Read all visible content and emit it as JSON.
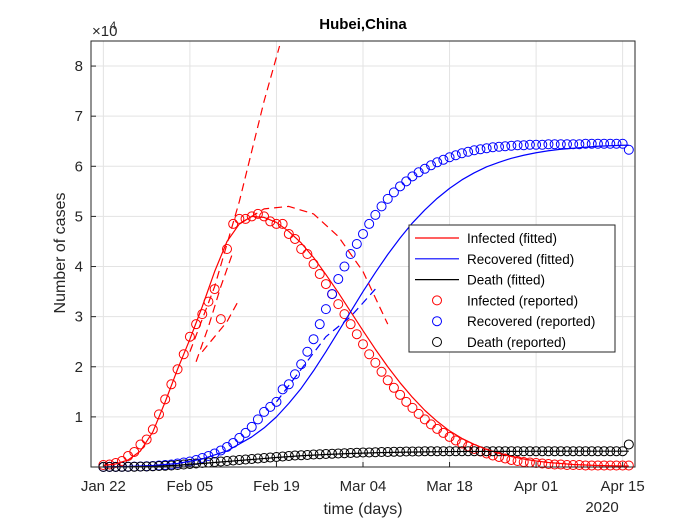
{
  "chart_data": {
    "type": "line",
    "title": "Hubei,China",
    "xlabel": "time (days)",
    "ylabel": "Number of cases",
    "y_exponent_label": "×10",
    "y_exponent_power": "4",
    "x_year_label": "2020",
    "x_unit": "days since Jan 22, 2020",
    "xlim": [
      -2,
      86
    ],
    "ylim": [
      0,
      8.5
    ],
    "y_scale_note": "values in units of 10^4 cases",
    "x_ticks": [
      {
        "value": 0,
        "label": "Jan 22"
      },
      {
        "value": 14,
        "label": "Feb 05"
      },
      {
        "value": 28,
        "label": "Feb 19"
      },
      {
        "value": 42,
        "label": "Mar 04"
      },
      {
        "value": 56,
        "label": "Mar 18"
      },
      {
        "value": 70,
        "label": "Apr 01"
      },
      {
        "value": 84,
        "label": "Apr 15"
      }
    ],
    "y_ticks": [
      1,
      2,
      3,
      4,
      5,
      6,
      7,
      8
    ],
    "grid": true,
    "legend_position": "right",
    "legend": [
      {
        "label": "Infected (fitted)",
        "color": "#ff0000",
        "marker": "line"
      },
      {
        "label": "Recovered (fitted)",
        "color": "#0000ff",
        "marker": "line"
      },
      {
        "label": "Death (fitted)",
        "color": "#000000",
        "marker": "line"
      },
      {
        "label": "Infected (reported)",
        "color": "#ff0000",
        "marker": "circle"
      },
      {
        "label": "Recovered (reported)",
        "color": "#0000ff",
        "marker": "circle"
      },
      {
        "label": "Death  (reported)",
        "color": "#000000",
        "marker": "circle"
      }
    ],
    "series": [
      {
        "name": "Infected (reported)",
        "style": "markers",
        "color": "#ff0000",
        "x": [
          0,
          1,
          2,
          3,
          4,
          5,
          6,
          7,
          8,
          9,
          10,
          11,
          12,
          13,
          14,
          15,
          16,
          17,
          18,
          19,
          20,
          21,
          22,
          23,
          24,
          25,
          26,
          27,
          28,
          29,
          30,
          31,
          32,
          33,
          34,
          35,
          36,
          37,
          38,
          39,
          40,
          41,
          42,
          43,
          44,
          45,
          46,
          47,
          48,
          49,
          50,
          51,
          52,
          53,
          54,
          55,
          56,
          57,
          58,
          59,
          60,
          61,
          62,
          63,
          64,
          65,
          66,
          67,
          68,
          69,
          70,
          71,
          72,
          73,
          74,
          75,
          76,
          77,
          78,
          79,
          80,
          81,
          82,
          83,
          84,
          85
        ],
        "y": [
          0.04,
          0.05,
          0.08,
          0.12,
          0.22,
          0.3,
          0.45,
          0.55,
          0.75,
          1.05,
          1.35,
          1.65,
          1.95,
          2.25,
          2.6,
          2.85,
          3.05,
          3.3,
          3.55,
          2.95,
          4.35,
          4.85,
          4.95,
          4.95,
          5.0,
          5.05,
          5.0,
          4.9,
          4.85,
          4.85,
          4.65,
          4.55,
          4.35,
          4.25,
          4.05,
          3.85,
          3.65,
          3.45,
          3.25,
          3.05,
          2.85,
          2.65,
          2.45,
          2.25,
          2.08,
          1.9,
          1.73,
          1.58,
          1.44,
          1.3,
          1.18,
          1.06,
          0.95,
          0.85,
          0.76,
          0.68,
          0.6,
          0.53,
          0.47,
          0.41,
          0.36,
          0.31,
          0.27,
          0.23,
          0.2,
          0.17,
          0.14,
          0.12,
          0.1,
          0.09,
          0.08,
          0.07,
          0.06,
          0.05,
          0.05,
          0.04,
          0.04,
          0.04,
          0.03,
          0.03,
          0.03,
          0.03,
          0.03,
          0.03,
          0.03,
          0.03
        ]
      },
      {
        "name": "Recovered (reported)",
        "style": "markers",
        "color": "#0000ff",
        "x": [
          0,
          1,
          2,
          3,
          4,
          5,
          6,
          7,
          8,
          9,
          10,
          11,
          12,
          13,
          14,
          15,
          16,
          17,
          18,
          19,
          20,
          21,
          22,
          23,
          24,
          25,
          26,
          27,
          28,
          29,
          30,
          31,
          32,
          33,
          34,
          35,
          36,
          37,
          38,
          39,
          40,
          41,
          42,
          43,
          44,
          45,
          46,
          47,
          48,
          49,
          50,
          51,
          52,
          53,
          54,
          55,
          56,
          57,
          58,
          59,
          60,
          61,
          62,
          63,
          64,
          65,
          66,
          67,
          68,
          69,
          70,
          71,
          72,
          73,
          74,
          75,
          76,
          77,
          78,
          79,
          80,
          81,
          82,
          83,
          84,
          85
        ],
        "y": [
          0.002,
          0.002,
          0.003,
          0.004,
          0.005,
          0.007,
          0.01,
          0.015,
          0.02,
          0.03,
          0.04,
          0.05,
          0.07,
          0.09,
          0.11,
          0.14,
          0.18,
          0.22,
          0.27,
          0.33,
          0.4,
          0.48,
          0.58,
          0.68,
          0.8,
          0.95,
          1.1,
          1.2,
          1.3,
          1.55,
          1.65,
          1.85,
          2.05,
          2.3,
          2.55,
          2.85,
          3.15,
          3.45,
          3.75,
          4.0,
          4.25,
          4.45,
          4.65,
          4.85,
          5.03,
          5.2,
          5.35,
          5.48,
          5.6,
          5.7,
          5.8,
          5.88,
          5.95,
          6.02,
          6.08,
          6.13,
          6.18,
          6.22,
          6.26,
          6.29,
          6.32,
          6.34,
          6.36,
          6.38,
          6.39,
          6.4,
          6.41,
          6.42,
          6.42,
          6.43,
          6.43,
          6.43,
          6.44,
          6.44,
          6.44,
          6.44,
          6.44,
          6.44,
          6.45,
          6.45,
          6.45,
          6.45,
          6.45,
          6.45,
          6.45,
          6.33
        ]
      },
      {
        "name": "Death  (reported)",
        "style": "markers",
        "color": "#000000",
        "x": [
          0,
          1,
          2,
          3,
          4,
          5,
          6,
          7,
          8,
          9,
          10,
          11,
          12,
          13,
          14,
          15,
          16,
          17,
          18,
          19,
          20,
          21,
          22,
          23,
          24,
          25,
          26,
          27,
          28,
          29,
          30,
          31,
          32,
          33,
          34,
          35,
          36,
          37,
          38,
          39,
          40,
          41,
          42,
          43,
          44,
          45,
          46,
          47,
          48,
          49,
          50,
          51,
          52,
          53,
          54,
          55,
          56,
          57,
          58,
          59,
          60,
          61,
          62,
          63,
          64,
          65,
          66,
          67,
          68,
          69,
          70,
          71,
          72,
          73,
          74,
          75,
          76,
          77,
          78,
          79,
          80,
          81,
          82,
          83,
          84,
          85
        ],
        "y": [
          0.002,
          0.002,
          0.003,
          0.004,
          0.005,
          0.006,
          0.008,
          0.011,
          0.015,
          0.02,
          0.025,
          0.03,
          0.04,
          0.05,
          0.06,
          0.07,
          0.08,
          0.09,
          0.1,
          0.11,
          0.12,
          0.13,
          0.14,
          0.15,
          0.16,
          0.17,
          0.18,
          0.19,
          0.2,
          0.21,
          0.22,
          0.23,
          0.235,
          0.24,
          0.25,
          0.255,
          0.26,
          0.265,
          0.27,
          0.275,
          0.28,
          0.285,
          0.29,
          0.29,
          0.295,
          0.3,
          0.3,
          0.305,
          0.305,
          0.31,
          0.31,
          0.31,
          0.315,
          0.315,
          0.315,
          0.315,
          0.315,
          0.315,
          0.315,
          0.315,
          0.315,
          0.315,
          0.315,
          0.315,
          0.315,
          0.315,
          0.315,
          0.315,
          0.315,
          0.315,
          0.315,
          0.315,
          0.315,
          0.315,
          0.315,
          0.315,
          0.315,
          0.315,
          0.315,
          0.315,
          0.315,
          0.315,
          0.315,
          0.315,
          0.315,
          0.45
        ]
      },
      {
        "name": "Infected (fitted)",
        "style": "solid",
        "color": "#ff0000",
        "x": [
          0,
          2,
          4,
          6,
          8,
          10,
          12,
          14,
          16,
          18,
          20,
          22,
          24,
          26,
          28,
          30,
          32,
          34,
          36,
          38,
          40,
          42,
          44,
          46,
          48,
          50,
          52,
          54,
          56,
          58,
          60,
          62,
          64,
          66,
          68,
          70,
          72,
          74,
          76,
          78,
          80,
          82,
          84,
          85
        ],
        "y": [
          0.03,
          0.06,
          0.14,
          0.32,
          0.7,
          1.3,
          1.95,
          2.55,
          3.2,
          3.9,
          4.5,
          4.85,
          5.0,
          4.98,
          4.88,
          4.7,
          4.47,
          4.18,
          3.84,
          3.48,
          3.1,
          2.72,
          2.35,
          2.0,
          1.68,
          1.39,
          1.13,
          0.91,
          0.72,
          0.57,
          0.45,
          0.35,
          0.27,
          0.21,
          0.16,
          0.12,
          0.09,
          0.07,
          0.05,
          0.04,
          0.03,
          0.025,
          0.02,
          0.02
        ]
      },
      {
        "name": "Recovered (fitted)",
        "style": "solid",
        "color": "#0000ff",
        "x": [
          0,
          4,
          8,
          12,
          16,
          20,
          24,
          26,
          28,
          30,
          32,
          34,
          36,
          38,
          40,
          42,
          44,
          46,
          48,
          50,
          52,
          54,
          56,
          58,
          60,
          62,
          64,
          66,
          68,
          70,
          72,
          74,
          76,
          78,
          80,
          82,
          84,
          85
        ],
        "y": [
          0,
          0.01,
          0.03,
          0.07,
          0.16,
          0.32,
          0.6,
          0.78,
          1.0,
          1.27,
          1.57,
          1.92,
          2.3,
          2.7,
          3.1,
          3.5,
          3.88,
          4.24,
          4.57,
          4.87,
          5.13,
          5.36,
          5.56,
          5.73,
          5.87,
          5.99,
          6.08,
          6.16,
          6.22,
          6.27,
          6.31,
          6.34,
          6.36,
          6.38,
          6.4,
          6.41,
          6.42,
          6.42
        ]
      },
      {
        "name": "Death (fitted)",
        "style": "solid",
        "color": "#000000",
        "x": [
          0,
          4,
          8,
          12,
          16,
          20,
          24,
          28,
          32,
          36,
          40,
          44,
          48,
          52,
          56,
          60,
          64,
          68,
          72,
          76,
          80,
          84,
          85
        ],
        "y": [
          0,
          0.005,
          0.012,
          0.035,
          0.07,
          0.11,
          0.15,
          0.19,
          0.225,
          0.25,
          0.27,
          0.285,
          0.295,
          0.302,
          0.308,
          0.31,
          0.312,
          0.313,
          0.314,
          0.315,
          0.315,
          0.315,
          0.315
        ]
      },
      {
        "name": "",
        "style": "dashed",
        "color": "#ff0000",
        "x": [
          14,
          18,
          22,
          26,
          28.5
        ],
        "y": [
          2.3,
          3.6,
          5.3,
          7.3,
          8.4
        ]
      },
      {
        "name": "",
        "style": "dashed",
        "color": "#ff0000",
        "x": [
          15,
          17,
          19,
          21
        ],
        "y": [
          2.1,
          2.8,
          3.6,
          4.3
        ]
      },
      {
        "name": "",
        "style": "dashed",
        "color": "#ff0000",
        "x": [
          16,
          18,
          20,
          22
        ],
        "y": [
          2.3,
          2.6,
          2.9,
          3.35
        ]
      },
      {
        "name": "",
        "style": "dashed",
        "color": "#ff0000",
        "x": [
          22,
          26,
          30,
          34,
          38,
          42,
          46
        ],
        "y": [
          4.85,
          5.15,
          5.2,
          5.05,
          4.6,
          3.9,
          2.85
        ]
      },
      {
        "name": "",
        "style": "dashed",
        "color": "#0000ff",
        "x": [
          28,
          32,
          36,
          40,
          44
        ],
        "y": [
          1.3,
          1.95,
          2.6,
          3.0,
          3.55
        ]
      }
    ]
  }
}
